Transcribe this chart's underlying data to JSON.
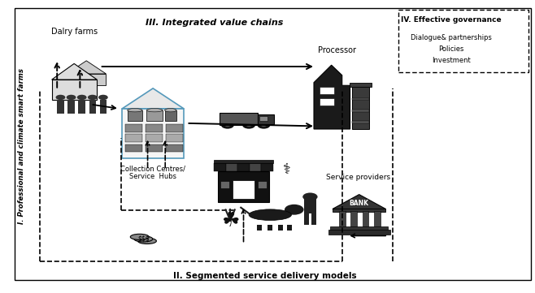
{
  "fig_width": 6.58,
  "fig_height": 3.61,
  "dpi": 100,
  "background_color": "#ffffff",
  "colors": {
    "black": "#000000",
    "dark": "#222222",
    "mid": "#555555",
    "light": "#aaaaaa",
    "white": "#ffffff",
    "blue_outline": "#5599bb"
  },
  "labels": {
    "dairy_farms": "Dalry farms",
    "collection_centres_1": "Collection Centres/",
    "collection_centres_2": "Service  Hubs",
    "processor": "Processor",
    "service_providers": "Service providers",
    "section_I": "I. Professional and climate smart farms",
    "section_II": "II. Segmented service delivery models",
    "section_III": "III. Integrated value chains",
    "section_IV": "IV. Effective governance",
    "gov_line1": "Dialogue& partnerships",
    "gov_line2": "Policies",
    "gov_line3": "Investment",
    "bank": "BANK"
  }
}
